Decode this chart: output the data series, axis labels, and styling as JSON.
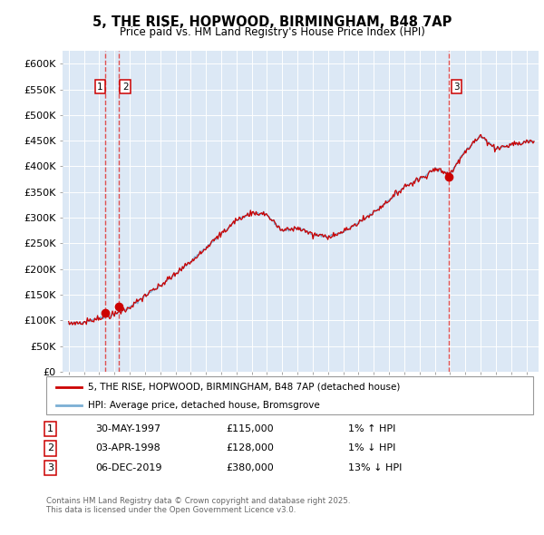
{
  "title": "5, THE RISE, HOPWOOD, BIRMINGHAM, B48 7AP",
  "subtitle": "Price paid vs. HM Land Registry's House Price Index (HPI)",
  "ylabel_ticks": [
    "£0",
    "£50K",
    "£100K",
    "£150K",
    "£200K",
    "£250K",
    "£300K",
    "£350K",
    "£400K",
    "£450K",
    "£500K",
    "£550K",
    "£600K"
  ],
  "ytick_values": [
    0,
    50000,
    100000,
    150000,
    200000,
    250000,
    300000,
    350000,
    400000,
    450000,
    500000,
    550000,
    600000
  ],
  "ylim": [
    0,
    625000
  ],
  "xlim_start": 1994.6,
  "xlim_end": 2025.8,
  "sale_dates": [
    1997.42,
    1998.26,
    2019.92
  ],
  "sale_prices": [
    115000,
    128000,
    380000
  ],
  "sale_labels": [
    "1",
    "2",
    "3"
  ],
  "hpi_line_color": "#7bafd4",
  "price_line_color": "#cc0000",
  "dashed_line_color": "#e05050",
  "background_color": "#dce8f5",
  "legend_line_color_red": "#cc0000",
  "legend_line_color_blue": "#7bafd4",
  "legend_entries": [
    "5, THE RISE, HOPWOOD, BIRMINGHAM, B48 7AP (detached house)",
    "HPI: Average price, detached house, Bromsgrove"
  ],
  "annotations": [
    {
      "label": "1",
      "date": "30-MAY-1997",
      "price": "£115,000",
      "pct": "1% ↑ HPI"
    },
    {
      "label": "2",
      "date": "03-APR-1998",
      "price": "£128,000",
      "pct": "1% ↓ HPI"
    },
    {
      "label": "3",
      "date": "06-DEC-2019",
      "price": "£380,000",
      "pct": "13% ↓ HPI"
    }
  ],
  "footer": "Contains HM Land Registry data © Crown copyright and database right 2025.\nThis data is licensed under the Open Government Licence v3.0."
}
